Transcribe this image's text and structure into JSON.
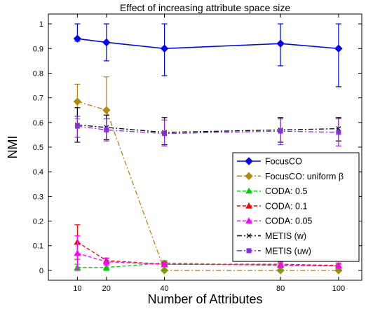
{
  "chart_data": {
    "type": "line",
    "title": "Effect of increasing attribute space size",
    "xlabel": "Number of Attributes",
    "ylabel": "NMI",
    "x": [
      10,
      20,
      40,
      80,
      100
    ],
    "xlim": [
      0,
      108
    ],
    "ylim": [
      -0.04,
      1.04
    ],
    "xticks": [
      "10",
      "20",
      "40",
      "80",
      "100"
    ],
    "yticks": [
      "0",
      "0.1",
      "0.2",
      "0.3",
      "0.4",
      "0.5",
      "0.6",
      "0.7",
      "0.8",
      "0.9",
      "1"
    ],
    "grid": false,
    "legend_position": "lower-right",
    "series": [
      {
        "name": "FocusCO",
        "color": "#0000ff",
        "dash": "solid",
        "marker": "diamond",
        "values": [
          0.94,
          0.925,
          0.9,
          0.92,
          0.9
        ],
        "err_low": [
          0.93,
          0.85,
          0.79,
          0.83,
          0.745
        ],
        "err_high": [
          1.0,
          1.0,
          1.0,
          1.0,
          1.0
        ]
      },
      {
        "name": "FocusCO: uniform β",
        "color": "#b8860b",
        "dash": "dashdot",
        "marker": "diamond",
        "values": [
          0.685,
          0.65,
          0.0,
          0.0,
          0.0
        ],
        "err_low": [
          0.615,
          0.53,
          0.0,
          0.0,
          0.0
        ],
        "err_high": [
          0.755,
          0.785,
          0.0,
          0.0,
          0.0
        ]
      },
      {
        "name": "CODA: 0.5",
        "color": "#00cc00",
        "dash": "dashed",
        "marker": "triangle",
        "values": [
          0.012,
          0.012,
          0.03,
          0.02,
          0.018
        ],
        "err_low": [
          0.0,
          0.0,
          0.0,
          0.0,
          0.0
        ],
        "err_high": [
          0.025,
          0.025,
          0.04,
          0.03,
          0.025
        ]
      },
      {
        "name": "CODA: 0.1",
        "color": "#ff0000",
        "dash": "dashed",
        "marker": "triangle",
        "values": [
          0.115,
          0.04,
          0.025,
          0.025,
          0.02
        ],
        "err_low": [
          0.045,
          0.028,
          0.018,
          0.012,
          0.01
        ],
        "err_high": [
          0.185,
          0.05,
          0.032,
          0.035,
          0.03
        ]
      },
      {
        "name": "CODA: 0.05",
        "color": "#ff00ff",
        "dash": "dashed",
        "marker": "triangle",
        "values": [
          0.07,
          0.035,
          0.025,
          0.022,
          0.018
        ],
        "err_low": [
          0.0,
          0.02,
          0.015,
          0.012,
          0.01
        ],
        "err_high": [
          0.14,
          0.05,
          0.035,
          0.03,
          0.025
        ]
      },
      {
        "name": "METIS (w)",
        "color": "#000000",
        "dash": "dashdot",
        "marker": "x",
        "values": [
          0.59,
          0.58,
          0.56,
          0.57,
          0.575
        ],
        "err_low": [
          0.52,
          0.53,
          0.51,
          0.52,
          0.525
        ],
        "err_high": [
          0.66,
          0.63,
          0.62,
          0.62,
          0.62
        ]
      },
      {
        "name": "METIS (uw)",
        "color": "#8a2be2",
        "dash": "dashdot",
        "marker": "square",
        "values": [
          0.585,
          0.57,
          0.555,
          0.565,
          0.56
        ],
        "err_low": [
          0.54,
          0.525,
          0.505,
          0.51,
          0.505
        ],
        "err_high": [
          0.625,
          0.615,
          0.61,
          0.615,
          0.615
        ]
      }
    ]
  }
}
